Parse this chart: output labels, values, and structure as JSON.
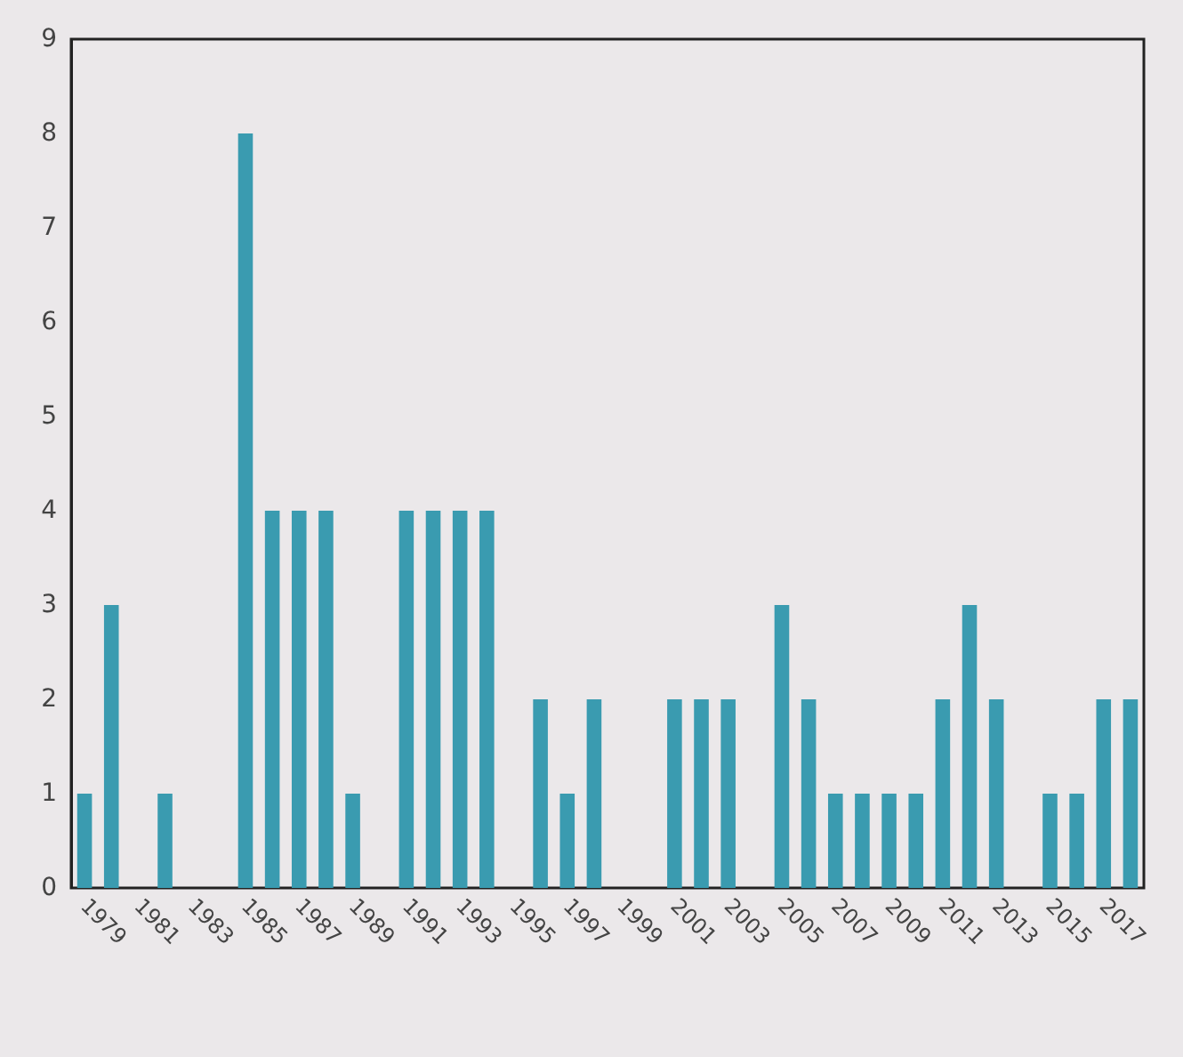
{
  "chart_data": {
    "type": "bar",
    "categories": [
      "1979",
      null,
      "1981",
      null,
      "1983",
      null,
      "1985",
      null,
      "1987",
      null,
      "1989",
      null,
      "1991",
      null,
      "1993",
      null,
      "1995",
      null,
      "1997",
      null,
      "1999",
      null,
      "2001",
      null,
      "2003",
      null,
      "2005",
      null,
      "2007",
      null,
      "2009",
      null,
      "2011",
      null,
      "2013",
      null,
      "2015",
      null,
      "2017",
      null
    ],
    "values": [
      1,
      3,
      0,
      1,
      0,
      0,
      8,
      4,
      4,
      4,
      1,
      0,
      4,
      4,
      4,
      4,
      0,
      2,
      1,
      2,
      0,
      0,
      2,
      2,
      2,
      0,
      3,
      2,
      1,
      1,
      1,
      1,
      2,
      3,
      2,
      0,
      1,
      1,
      2,
      2
    ],
    "color": "#3a9bb0",
    "ylim": [
      0,
      9
    ],
    "yticks": [
      0,
      1,
      2,
      3,
      4,
      5,
      6,
      7,
      8,
      9
    ],
    "grid": false
  }
}
